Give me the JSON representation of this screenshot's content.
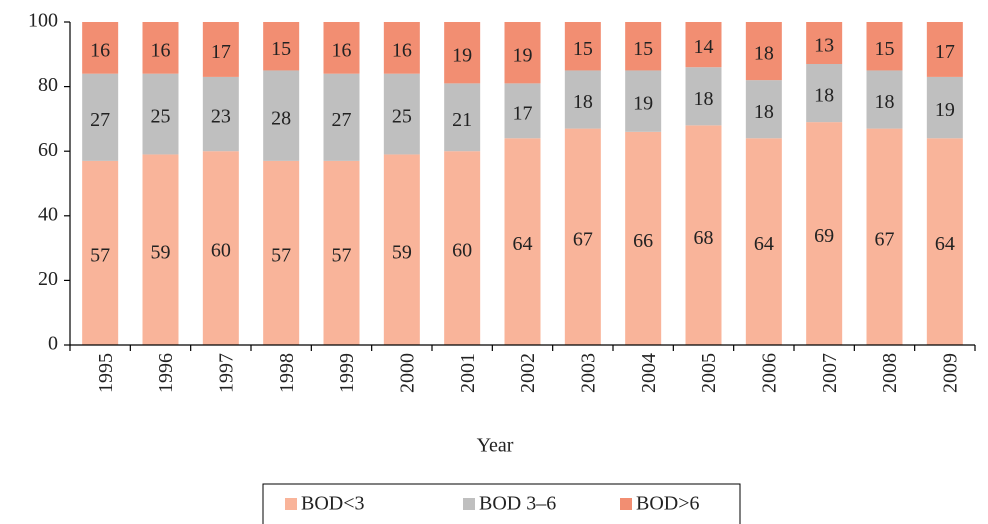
{
  "chart_data": {
    "type": "stacked-bar",
    "x_label": "Year",
    "categories": [
      "1995",
      "1996",
      "1997",
      "1998",
      "1999",
      "2000",
      "2001",
      "2002",
      "2003",
      "2004",
      "2005",
      "2006",
      "2007",
      "2008",
      "2009"
    ],
    "series": [
      {
        "name": "BOD<3",
        "color": "#f9b49a",
        "values": [
          57,
          59,
          60,
          57,
          57,
          59,
          60,
          64,
          67,
          66,
          68,
          64,
          69,
          67,
          64
        ]
      },
      {
        "name": "BOD 3–6",
        "color": "#bfbfbf",
        "values": [
          27,
          25,
          23,
          28,
          27,
          25,
          21,
          17,
          18,
          19,
          18,
          18,
          18,
          18,
          19
        ]
      },
      {
        "name": "BOD>6",
        "color": "#f28e72",
        "values": [
          16,
          16,
          17,
          15,
          16,
          16,
          19,
          19,
          15,
          15,
          14,
          18,
          13,
          15,
          17
        ]
      }
    ],
    "ylim": [
      0,
      100
    ],
    "yticks": [
      0,
      20,
      40,
      60,
      80,
      100
    ],
    "legend": "bottom"
  }
}
